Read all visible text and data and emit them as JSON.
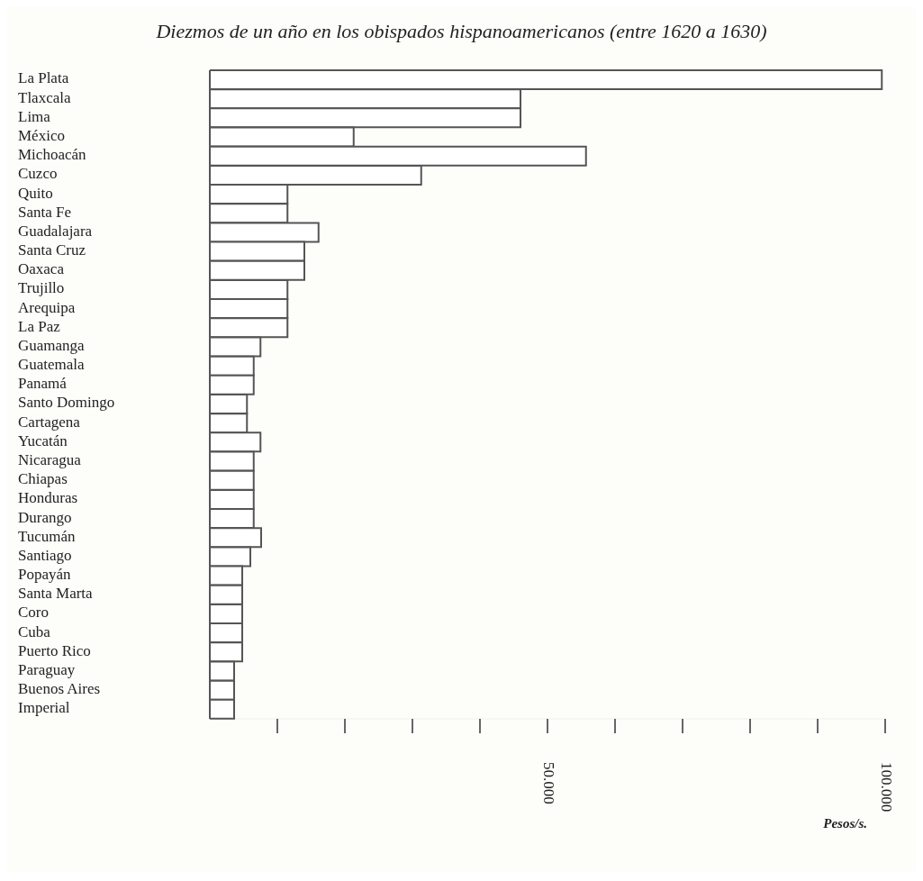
{
  "chart_data": {
    "type": "bar",
    "orientation": "horizontal",
    "title": "Diezmos de un año en los obispados hispanoamericanos (entre 1620 a 1630)",
    "xlabel": "Pesos/s.",
    "categories": [
      "La Plata",
      "Tlaxcala",
      "Lima",
      "México",
      "Michoacán",
      "Cuzco",
      "Quito",
      "Santa Fe",
      "Guadalajara",
      "Santa Cruz",
      "Oaxaca",
      "Trujillo",
      "Arequipa",
      "La Paz",
      "Guamanga",
      "Guatemala",
      "Panamá",
      "Santo Domingo",
      "Cartagena",
      "Yucatán",
      "Nicaragua",
      "Chiapas",
      "Honduras",
      "Durango",
      "Tucumán",
      "Santiago",
      "Popayán",
      "Santa Marta",
      "Coro",
      "Cuba",
      "Puerto Rico",
      "Paraguay",
      "Buenos Aires",
      "Imperial"
    ],
    "values": [
      99500,
      46000,
      46000,
      21300,
      55700,
      31300,
      11500,
      11500,
      16100,
      14000,
      14000,
      11500,
      11500,
      11500,
      7500,
      6500,
      6500,
      5500,
      5500,
      7500,
      6500,
      6500,
      6500,
      6500,
      7600,
      6000,
      4800,
      4800,
      4800,
      4800,
      4800,
      3600,
      3600,
      3600
    ],
    "color": "#ffffff",
    "xlim": [
      0,
      100000
    ],
    "xticks": [
      {
        "value": 10000,
        "label": null
      },
      {
        "value": 20000,
        "label": null
      },
      {
        "value": 30000,
        "label": null
      },
      {
        "value": 40000,
        "label": null
      },
      {
        "value": 50000,
        "label": "50.000"
      },
      {
        "value": 60000,
        "label": null
      },
      {
        "value": 70000,
        "label": null
      },
      {
        "value": 80000,
        "label": null
      },
      {
        "value": 90000,
        "label": null
      },
      {
        "value": 100000,
        "label": "100.000"
      }
    ]
  }
}
